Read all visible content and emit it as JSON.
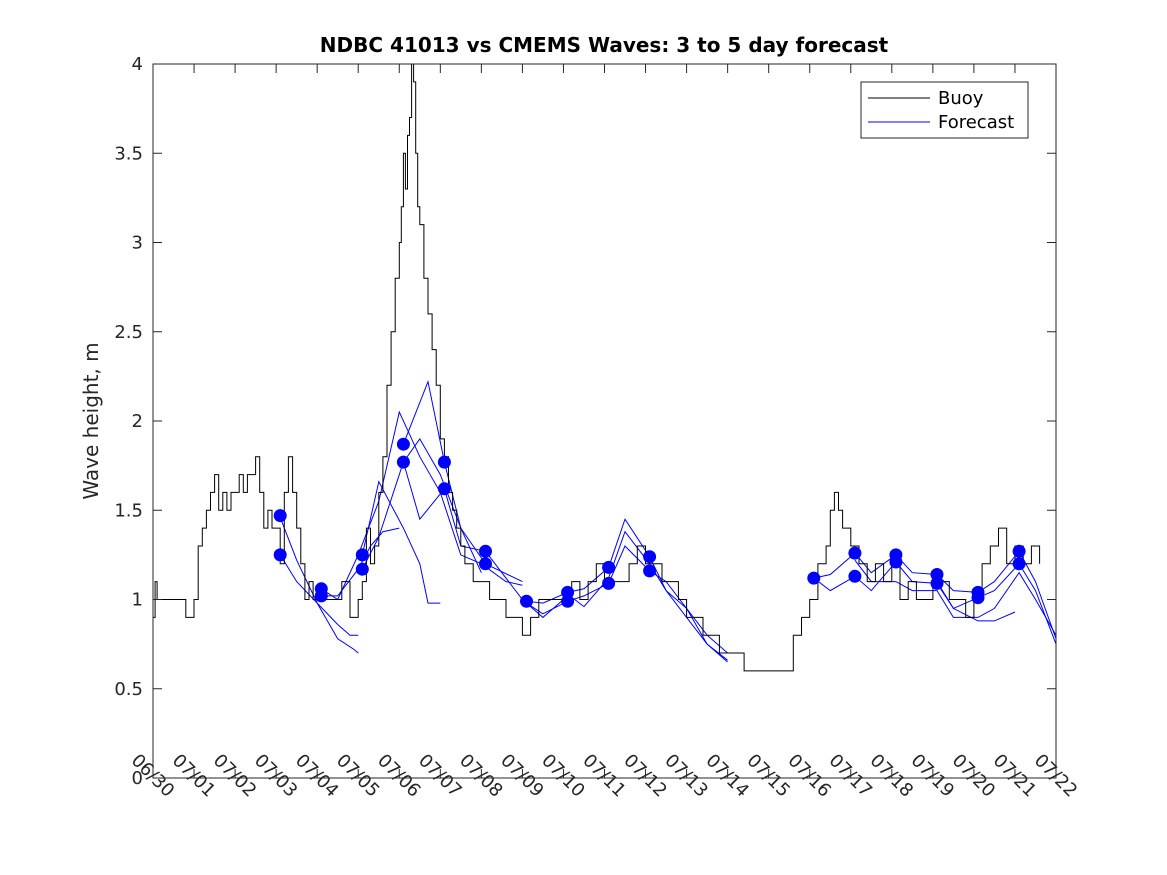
{
  "chart_data": {
    "type": "line",
    "title": "NDBC 41013 vs CMEMS Waves: 3 to 5 day forecast",
    "xlabel": "",
    "ylabel": "Wave height, m",
    "x_range": [
      0,
      22
    ],
    "ylim": [
      0,
      4
    ],
    "y_ticks": [
      "0",
      "0.5",
      "1",
      "1.5",
      "2",
      "2.5",
      "3",
      "3.5",
      "4"
    ],
    "x_ticks": [
      "06/30",
      "07/01",
      "07/02",
      "07/03",
      "07/04",
      "07/05",
      "07/06",
      "07/07",
      "07/08",
      "07/09",
      "07/10",
      "07/11",
      "07/12",
      "07/13",
      "07/14",
      "07/15",
      "07/16",
      "07/17",
      "07/18",
      "07/19",
      "07/20",
      "07/21",
      "07/22"
    ],
    "grid": false,
    "legend": {
      "position": "top-right",
      "entries": [
        {
          "name": "Buoy",
          "color": "#000000"
        },
        {
          "name": "Forecast",
          "color": "#0000ff"
        }
      ]
    },
    "colors": {
      "buoy": "#000000",
      "forecast": "#0000ff",
      "marker": "#0000ff"
    },
    "buoy": {
      "name": "Buoy",
      "x": [
        0,
        0.05,
        0.1,
        0.5,
        0.8,
        0.9,
        1.0,
        1.1,
        1.2,
        1.3,
        1.4,
        1.5,
        1.6,
        1.7,
        1.8,
        1.9,
        2.0,
        2.1,
        2.2,
        2.3,
        2.4,
        2.5,
        2.6,
        2.7,
        2.8,
        2.9,
        3.0,
        3.1,
        3.2,
        3.3,
        3.4,
        3.5,
        3.6,
        3.7,
        3.8,
        3.9,
        4.0,
        4.2,
        4.4,
        4.6,
        4.8,
        5.0,
        5.1,
        5.2,
        5.3,
        5.4,
        5.5,
        5.6,
        5.7,
        5.8,
        5.9,
        6.0,
        6.05,
        6.1,
        6.15,
        6.2,
        6.25,
        6.3,
        6.35,
        6.4,
        6.45,
        6.5,
        6.6,
        6.7,
        6.8,
        6.9,
        7.0,
        7.1,
        7.2,
        7.3,
        7.4,
        7.5,
        7.6,
        7.8,
        8.0,
        8.2,
        8.4,
        8.6,
        8.8,
        9.0,
        9.2,
        9.4,
        9.6,
        9.8,
        10.0,
        10.2,
        10.4,
        10.6,
        10.8,
        11.0,
        11.2,
        11.4,
        11.6,
        11.8,
        12.0,
        12.2,
        12.4,
        12.6,
        12.8,
        13.0,
        13.2,
        13.4,
        13.6,
        13.8,
        14.0,
        14.2,
        14.4,
        14.5,
        15.0,
        15.2,
        15.4,
        15.6,
        15.8,
        16.0,
        16.2,
        16.4,
        16.5,
        16.6,
        16.7,
        16.8,
        17.0,
        17.2,
        17.4,
        17.6,
        17.8,
        18.0,
        18.2,
        18.4,
        18.6,
        18.8,
        19.0,
        19.2,
        19.4,
        19.6,
        19.8,
        20.0,
        20.2,
        20.4,
        20.6,
        20.8,
        21.0,
        21.2,
        21.4,
        21.6
      ],
      "y": [
        0.9,
        1.1,
        1.0,
        1.0,
        0.9,
        0.9,
        1.0,
        1.3,
        1.4,
        1.5,
        1.6,
        1.7,
        1.5,
        1.6,
        1.5,
        1.6,
        1.6,
        1.7,
        1.6,
        1.7,
        1.7,
        1.8,
        1.6,
        1.4,
        1.5,
        1.4,
        1.4,
        1.2,
        1.6,
        1.8,
        1.6,
        1.4,
        1.2,
        1.0,
        1.1,
        1.0,
        1.0,
        1.0,
        1.0,
        1.1,
        0.9,
        1.0,
        1.1,
        1.4,
        1.2,
        1.3,
        1.6,
        1.8,
        2.2,
        2.5,
        2.8,
        3.0,
        3.2,
        3.5,
        3.3,
        3.6,
        3.7,
        4.0,
        3.9,
        3.5,
        3.2,
        3.1,
        2.8,
        2.6,
        2.4,
        2.2,
        1.9,
        1.8,
        1.6,
        1.5,
        1.4,
        1.3,
        1.2,
        1.1,
        1.1,
        1.0,
        1.0,
        0.9,
        0.9,
        0.8,
        0.9,
        1.0,
        1.0,
        1.0,
        1.0,
        1.1,
        1.0,
        1.1,
        1.2,
        1.1,
        1.1,
        1.1,
        1.2,
        1.3,
        1.2,
        1.2,
        1.1,
        1.1,
        1.0,
        0.9,
        0.9,
        0.8,
        0.8,
        0.7,
        0.7,
        0.7,
        0.6,
        0.6,
        0.6,
        0.6,
        0.6,
        0.8,
        0.9,
        1.0,
        1.2,
        1.3,
        1.5,
        1.6,
        1.5,
        1.4,
        1.3,
        1.2,
        1.1,
        1.2,
        1.1,
        1.2,
        1.0,
        1.1,
        1.0,
        1.0,
        1.1,
        1.1,
        1.0,
        1.0,
        0.9,
        1.0,
        1.2,
        1.3,
        1.4,
        1.2,
        1.3,
        1.2,
        1.3,
        1.2
      ]
    },
    "forecast_lines": [
      {
        "name": "Forecast",
        "x": [
          3.1,
          3.5,
          4.0,
          4.5,
          4.9,
          5.0
        ],
        "y": [
          1.46,
          1.22,
          0.98,
          0.78,
          0.72,
          0.7
        ]
      },
      {
        "name": "Forecast",
        "x": [
          3.1,
          3.5,
          4.0,
          4.5,
          4.8,
          5.0
        ],
        "y": [
          1.25,
          1.1,
          0.98,
          0.86,
          0.8,
          0.8
        ]
      },
      {
        "name": "Forecast",
        "x": [
          4.1,
          4.5,
          5.0,
          5.5,
          5.8,
          6.0,
          6.5,
          7.0,
          7.5,
          8.0,
          8.6,
          9.0
        ],
        "y": [
          1.06,
          1.0,
          1.25,
          1.55,
          1.85,
          2.05,
          1.8,
          1.6,
          1.25,
          1.2,
          1.1,
          1.08
        ]
      },
      {
        "name": "Forecast",
        "x": [
          4.1,
          4.5,
          5.0,
          5.3,
          5.6,
          6.0
        ],
        "y": [
          1.02,
          1.02,
          1.17,
          1.3,
          1.38,
          1.4
        ]
      },
      {
        "name": "Forecast",
        "x": [
          5.1,
          5.5,
          6.1,
          6.5,
          6.7,
          7.0
        ],
        "y": [
          1.25,
          1.66,
          1.4,
          1.2,
          0.98,
          0.98
        ]
      },
      {
        "name": "Forecast",
        "x": [
          5.1,
          5.5,
          6.1,
          6.5,
          7.0,
          7.5,
          8.0
        ],
        "y": [
          1.17,
          1.35,
          1.77,
          1.9,
          1.7,
          1.4,
          1.15
        ]
      },
      {
        "name": "Forecast",
        "x": [
          6.1,
          6.7,
          7.1,
          7.5,
          8.1,
          9.0
        ],
        "y": [
          1.87,
          2.22,
          1.77,
          1.4,
          1.2,
          1.1
        ]
      },
      {
        "name": "Forecast",
        "x": [
          6.1,
          6.5,
          7.1,
          7.5,
          8.1,
          9.0,
          9.5,
          10.0
        ],
        "y": [
          1.77,
          1.45,
          1.62,
          1.3,
          1.27,
          1.0,
          0.9,
          1.0
        ]
      },
      {
        "name": "Forecast",
        "x": [
          9.1,
          9.5,
          10.1,
          10.5,
          11.1,
          11.5,
          12.1,
          12.5,
          13.0,
          13.5,
          14.0
        ],
        "y": [
          0.99,
          0.98,
          1.04,
          1.06,
          1.18,
          1.45,
          1.24,
          1.05,
          0.95,
          0.75,
          0.66
        ]
      },
      {
        "name": "Forecast",
        "x": [
          9.1,
          9.5,
          10.1,
          10.5,
          11.1,
          11.5,
          12.1,
          12.5,
          13.0,
          13.5,
          14.0
        ],
        "y": [
          0.98,
          0.92,
          0.99,
          1.02,
          1.09,
          1.3,
          1.16,
          1.1,
          0.95,
          0.8,
          0.7
        ]
      },
      {
        "name": "Forecast",
        "x": [
          10.1,
          10.5,
          11.1,
          11.5,
          12.1,
          12.5,
          13.0,
          13.5,
          14.0
        ],
        "y": [
          1.03,
          0.96,
          1.12,
          1.38,
          1.2,
          1.05,
          0.9,
          0.75,
          0.65
        ]
      },
      {
        "name": "Forecast",
        "x": [
          16.1,
          16.5,
          17.1,
          17.5,
          18.1,
          18.5,
          19.1,
          19.5,
          20.1,
          20.5,
          21.1,
          21.5,
          22.0
        ],
        "y": [
          1.12,
          1.14,
          1.26,
          1.15,
          1.25,
          1.15,
          1.14,
          1.05,
          1.04,
          1.1,
          1.27,
          1.1,
          0.78
        ]
      },
      {
        "name": "Forecast",
        "x": [
          16.1,
          16.5,
          17.1,
          17.5,
          18.1,
          18.5,
          19.1,
          19.5,
          20.1,
          20.5,
          21.1,
          21.5,
          22.0
        ],
        "y": [
          1.12,
          1.05,
          1.13,
          1.05,
          1.21,
          1.1,
          1.09,
          0.95,
          1.01,
          1.05,
          1.2,
          1.05,
          0.75
        ]
      },
      {
        "name": "Forecast",
        "x": [
          17.1,
          17.5,
          18.1,
          18.5,
          19.1,
          19.5,
          20.1,
          20.5,
          21.1,
          21.5,
          22.0
        ],
        "y": [
          1.22,
          1.1,
          1.1,
          1.05,
          1.05,
          0.9,
          0.9,
          0.95,
          1.15,
          1.0,
          0.8
        ]
      },
      {
        "name": "Forecast",
        "x": [
          19.1,
          19.5,
          20.1,
          20.5,
          21.0
        ],
        "y": [
          1.1,
          0.95,
          0.88,
          0.88,
          0.93
        ]
      }
    ],
    "forecast_markers": {
      "x": [
        3.1,
        3.1,
        4.1,
        4.1,
        5.1,
        5.1,
        6.1,
        6.1,
        7.1,
        7.1,
        8.1,
        8.1,
        9.1,
        10.1,
        10.1,
        11.1,
        11.1,
        12.1,
        12.1,
        16.1,
        17.1,
        17.1,
        18.1,
        18.1,
        19.1,
        19.1,
        20.1,
        20.1,
        21.1,
        21.1
      ],
      "y": [
        1.47,
        1.25,
        1.06,
        1.02,
        1.25,
        1.17,
        1.87,
        1.77,
        1.77,
        1.62,
        1.27,
        1.2,
        0.99,
        1.04,
        0.99,
        1.18,
        1.09,
        1.24,
        1.16,
        1.12,
        1.26,
        1.13,
        1.25,
        1.21,
        1.14,
        1.09,
        1.04,
        1.01,
        1.27,
        1.2
      ]
    }
  }
}
